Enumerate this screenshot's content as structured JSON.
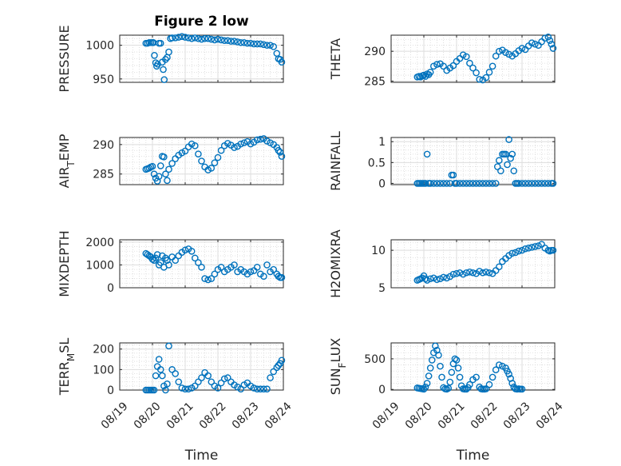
{
  "figure": {
    "marker_color": "#0072bd",
    "x_tick_labels": [
      "08/19",
      "08/20",
      "08/21",
      "08/22",
      "08/23",
      "08/24"
    ],
    "x_label": "Time"
  },
  "chart_data": [
    {
      "type": "scatter",
      "title": "Figure 2 low",
      "ylabel": "PRESSURE",
      "ylabel_main": "PRESSURE",
      "ylabel_sub": "",
      "ylabel_tail": "",
      "yticks": [
        950,
        1000
      ],
      "ylim": [
        945,
        1015
      ],
      "xlim": [
        0,
        5
      ],
      "xlabel": "",
      "x": [
        0.8,
        0.85,
        0.9,
        0.95,
        1.0,
        1.03,
        1.06,
        1.1,
        1.13,
        1.16,
        1.2,
        1.25,
        1.3,
        1.33,
        1.36,
        1.4,
        1.45,
        1.5,
        1.55,
        1.6,
        1.7,
        1.8,
        1.9,
        2.0,
        2.1,
        2.2,
        2.3,
        2.4,
        2.5,
        2.6,
        2.7,
        2.8,
        2.9,
        3.0,
        3.1,
        3.2,
        3.3,
        3.4,
        3.5,
        3.6,
        3.7,
        3.8,
        3.9,
        4.0,
        4.1,
        4.2,
        4.3,
        4.4,
        4.5,
        4.6,
        4.7,
        4.8,
        4.85,
        4.9,
        4.95
      ],
      "y": [
        1003,
        1003,
        1004,
        1004,
        1004,
        1004,
        985,
        974,
        969,
        972,
        1003,
        1003,
        975,
        964,
        949,
        979,
        982,
        990,
        1010,
        1011,
        1011,
        1012,
        1013,
        1012,
        1011,
        1010,
        1011,
        1010,
        1009,
        1010,
        1010,
        1009,
        1008,
        1009,
        1008,
        1007,
        1007,
        1006,
        1006,
        1005,
        1004,
        1004,
        1003,
        1003,
        1002,
        1002,
        1002,
        1001,
        1000,
        1000,
        998,
        988,
        980,
        979,
        975
      ]
    },
    {
      "type": "scatter",
      "title": "",
      "ylabel": "THETA",
      "ylabel_main": "THETA",
      "ylabel_sub": "",
      "ylabel_tail": "",
      "yticks": [
        285,
        290
      ],
      "ylim": [
        284.8,
        292.7
      ],
      "xlim": [
        0,
        5
      ],
      "xlabel": "",
      "x": [
        0.8,
        0.85,
        0.9,
        0.95,
        1.0,
        1.05,
        1.1,
        1.15,
        1.2,
        1.3,
        1.4,
        1.5,
        1.6,
        1.7,
        1.8,
        1.9,
        2.0,
        2.1,
        2.2,
        2.3,
        2.4,
        2.5,
        2.6,
        2.7,
        2.8,
        2.9,
        3.0,
        3.1,
        3.2,
        3.3,
        3.4,
        3.5,
        3.6,
        3.7,
        3.8,
        3.9,
        4.0,
        4.1,
        4.2,
        4.3,
        4.4,
        4.5,
        4.6,
        4.7,
        4.8,
        4.85,
        4.9,
        4.95
      ],
      "y": [
        285.7,
        285.8,
        285.7,
        285.9,
        286.0,
        285.8,
        286.2,
        286.1,
        286.5,
        287.5,
        287.8,
        287.9,
        287.5,
        286.8,
        287.2,
        287.6,
        288.3,
        288.8,
        289.4,
        289.1,
        288.0,
        287.2,
        286.4,
        285.3,
        285.2,
        285.6,
        286.5,
        287.5,
        289.2,
        290.0,
        290.2,
        289.8,
        289.5,
        289.2,
        289.6,
        290.1,
        290.5,
        290.3,
        290.9,
        291.4,
        291.2,
        291.0,
        291.6,
        292.2,
        292.4,
        291.8,
        291.2,
        290.5
      ]
    },
    {
      "type": "scatter",
      "title": "",
      "ylabel": "AIR_TEMP",
      "ylabel_main": "AIR",
      "ylabel_sub": "T",
      "ylabel_tail": "EMP",
      "yticks": [
        285,
        290
      ],
      "ylim": [
        283.2,
        291.2
      ],
      "xlim": [
        0,
        5
      ],
      "xlabel": "",
      "x": [
        0.8,
        0.85,
        0.9,
        0.95,
        1.0,
        1.05,
        1.1,
        1.15,
        1.2,
        1.25,
        1.3,
        1.35,
        1.4,
        1.45,
        1.5,
        1.6,
        1.7,
        1.8,
        1.9,
        2.0,
        2.1,
        2.2,
        2.3,
        2.4,
        2.5,
        2.6,
        2.7,
        2.8,
        2.9,
        3.0,
        3.1,
        3.2,
        3.3,
        3.4,
        3.5,
        3.6,
        3.7,
        3.8,
        3.9,
        4.0,
        4.1,
        4.2,
        4.3,
        4.4,
        4.5,
        4.6,
        4.7,
        4.8,
        4.85,
        4.9,
        4.95
      ],
      "y": [
        285.8,
        285.9,
        286.0,
        286.2,
        286.3,
        285.0,
        284.3,
        283.8,
        284.6,
        286.4,
        288.0,
        287.9,
        285.0,
        283.9,
        285.8,
        286.8,
        287.6,
        288.2,
        288.6,
        288.9,
        289.6,
        290.1,
        289.8,
        288.4,
        287.2,
        286.2,
        285.7,
        286.0,
        286.9,
        287.8,
        289.0,
        289.8,
        290.2,
        289.9,
        289.5,
        289.7,
        290.1,
        290.3,
        290.5,
        290.1,
        290.4,
        290.8,
        290.9,
        291.0,
        290.6,
        290.3,
        290.0,
        289.5,
        289.0,
        288.7,
        288.0
      ]
    },
    {
      "type": "scatter",
      "title": "",
      "ylabel": "RAINFALL",
      "ylabel_main": "RAINFALL",
      "ylabel_sub": "",
      "ylabel_tail": "",
      "yticks": [
        0,
        0.5,
        1
      ],
      "ylim": [
        -0.03,
        1.1
      ],
      "xlim": [
        0,
        5
      ],
      "xlabel": "",
      "x": [
        0.8,
        0.85,
        0.9,
        0.95,
        1.0,
        1.05,
        1.1,
        1.15,
        1.2,
        1.3,
        1.4,
        1.5,
        1.6,
        1.7,
        1.8,
        1.85,
        1.9,
        1.95,
        2.0,
        2.1,
        2.2,
        2.3,
        2.4,
        2.5,
        2.6,
        2.7,
        2.8,
        2.9,
        3.0,
        3.1,
        3.2,
        3.25,
        3.3,
        3.35,
        3.4,
        3.45,
        3.5,
        3.55,
        3.6,
        3.65,
        3.7,
        3.75,
        3.8,
        3.85,
        3.9,
        4.0,
        4.1,
        4.2,
        4.3,
        4.4,
        4.5,
        4.6,
        4.7,
        4.8,
        4.9,
        4.95
      ],
      "y": [
        0,
        0,
        0,
        0,
        0,
        0,
        0.7,
        0,
        0,
        0,
        0,
        0,
        0,
        0,
        0,
        0.2,
        0.2,
        0,
        0,
        0,
        0,
        0,
        0,
        0,
        0,
        0,
        0,
        0,
        0,
        0,
        0,
        0.4,
        0.55,
        0.3,
        0.7,
        0.7,
        0.7,
        0.45,
        1.05,
        0.6,
        0.7,
        0.3,
        0,
        0,
        0,
        0,
        0,
        0,
        0,
        0,
        0,
        0,
        0,
        0,
        0,
        0
      ]
    },
    {
      "type": "scatter",
      "title": "",
      "ylabel": "MIXDEPTH",
      "ylabel_main": "MIXDEPTH",
      "ylabel_sub": "",
      "ylabel_tail": "",
      "yticks": [
        0,
        1000,
        2000
      ],
      "ylim": [
        0,
        2100
      ],
      "xlim": [
        0,
        5
      ],
      "xlabel": "",
      "x": [
        0.8,
        0.85,
        0.9,
        0.95,
        1.0,
        1.05,
        1.1,
        1.15,
        1.2,
        1.25,
        1.3,
        1.35,
        1.4,
        1.45,
        1.5,
        1.6,
        1.7,
        1.8,
        1.9,
        2.0,
        2.1,
        2.2,
        2.3,
        2.4,
        2.5,
        2.6,
        2.7,
        2.8,
        2.9,
        3.0,
        3.1,
        3.2,
        3.3,
        3.4,
        3.5,
        3.6,
        3.7,
        3.8,
        3.9,
        4.0,
        4.1,
        4.2,
        4.3,
        4.4,
        4.5,
        4.6,
        4.7,
        4.8,
        4.85,
        4.9,
        4.95
      ],
      "y": [
        1500,
        1450,
        1400,
        1350,
        1250,
        1200,
        1300,
        1450,
        1000,
        1100,
        1400,
        900,
        1300,
        1200,
        1000,
        1350,
        1200,
        1400,
        1550,
        1650,
        1700,
        1600,
        1300,
        1100,
        900,
        400,
        350,
        400,
        600,
        800,
        900,
        700,
        800,
        900,
        1000,
        700,
        800,
        700,
        600,
        700,
        750,
        900,
        600,
        500,
        1000,
        700,
        800,
        600,
        500,
        450,
        450
      ]
    },
    {
      "type": "scatter",
      "title": "",
      "ylabel": "H2OMIXRA",
      "ylabel_main": "H2OMIXRA",
      "ylabel_sub": "",
      "ylabel_tail": "",
      "yticks": [
        5,
        10
      ],
      "ylim": [
        5,
        11.4
      ],
      "xlim": [
        0,
        5
      ],
      "xlabel": "",
      "x": [
        0.8,
        0.85,
        0.9,
        0.95,
        1.0,
        1.05,
        1.1,
        1.2,
        1.3,
        1.4,
        1.5,
        1.6,
        1.7,
        1.8,
        1.9,
        2.0,
        2.1,
        2.2,
        2.3,
        2.4,
        2.5,
        2.6,
        2.7,
        2.8,
        2.9,
        3.0,
        3.1,
        3.2,
        3.3,
        3.4,
        3.5,
        3.6,
        3.7,
        3.8,
        3.9,
        4.0,
        4.1,
        4.2,
        4.3,
        4.4,
        4.5,
        4.6,
        4.7,
        4.8,
        4.85,
        4.9,
        4.95
      ],
      "y": [
        6.0,
        6.1,
        6.2,
        6.3,
        6.6,
        6.2,
        6.0,
        6.2,
        6.3,
        6.1,
        6.2,
        6.4,
        6.3,
        6.5,
        6.8,
        6.9,
        7.0,
        6.8,
        7.0,
        7.1,
        7.0,
        6.9,
        7.2,
        7.0,
        7.1,
        7.0,
        6.9,
        7.3,
        7.8,
        8.5,
        8.9,
        9.3,
        9.6,
        9.7,
        9.9,
        10.0,
        10.2,
        10.3,
        10.4,
        10.5,
        10.6,
        10.8,
        10.3,
        10.0,
        9.9,
        10.0,
        10.0
      ]
    },
    {
      "type": "scatter",
      "title": "",
      "ylabel": "TERR_MSL",
      "ylabel_main": "TERR",
      "ylabel_sub": "M",
      "ylabel_tail": "SL",
      "yticks": [
        0,
        100,
        200
      ],
      "ylim": [
        0,
        230
      ],
      "xlim": [
        0,
        5
      ],
      "xlabel": "Time",
      "x": [
        0.8,
        0.85,
        0.9,
        0.95,
        1.0,
        1.05,
        1.1,
        1.15,
        1.2,
        1.25,
        1.3,
        1.35,
        1.4,
        1.45,
        1.5,
        1.6,
        1.7,
        1.8,
        1.9,
        2.0,
        2.1,
        2.2,
        2.3,
        2.4,
        2.5,
        2.6,
        2.7,
        2.8,
        2.9,
        3.0,
        3.1,
        3.2,
        3.3,
        3.4,
        3.5,
        3.6,
        3.7,
        3.8,
        3.9,
        4.0,
        4.1,
        4.2,
        4.3,
        4.4,
        4.5,
        4.6,
        4.7,
        4.8,
        4.85,
        4.9,
        4.95
      ],
      "y": [
        0,
        0,
        0,
        0,
        0,
        0,
        70,
        115,
        150,
        100,
        70,
        20,
        0,
        30,
        215,
        100,
        80,
        40,
        10,
        5,
        5,
        10,
        20,
        40,
        60,
        85,
        70,
        40,
        20,
        10,
        35,
        55,
        60,
        40,
        25,
        15,
        5,
        25,
        35,
        20,
        10,
        5,
        5,
        5,
        5,
        60,
        90,
        110,
        120,
        130,
        145
      ]
    },
    {
      "type": "scatter",
      "title": "",
      "ylabel": "SUN_FLUX",
      "ylabel_main": "SUN",
      "ylabel_sub": "F",
      "ylabel_tail": "LUX",
      "yticks": [
        0,
        500
      ],
      "ylim": [
        -10,
        760
      ],
      "xlim": [
        0,
        5
      ],
      "xlabel": "Time",
      "x": [
        0.8,
        0.85,
        0.9,
        0.95,
        1.0,
        1.05,
        1.1,
        1.15,
        1.2,
        1.25,
        1.3,
        1.35,
        1.4,
        1.45,
        1.5,
        1.55,
        1.6,
        1.65,
        1.7,
        1.75,
        1.8,
        1.85,
        1.9,
        1.95,
        2.0,
        2.05,
        2.1,
        2.15,
        2.2,
        2.25,
        2.3,
        2.35,
        2.4,
        2.5,
        2.6,
        2.7,
        2.75,
        2.8,
        2.85,
        2.9,
        3.0,
        3.1,
        3.2,
        3.3,
        3.4,
        3.5,
        3.55,
        3.6,
        3.65,
        3.7,
        3.75,
        3.8,
        3.85,
        3.9,
        3.95,
        4.0
      ],
      "y": [
        25,
        20,
        15,
        10,
        5,
        40,
        100,
        220,
        350,
        480,
        600,
        710,
        640,
        560,
        380,
        200,
        30,
        10,
        5,
        20,
        120,
        280,
        420,
        500,
        480,
        350,
        200,
        60,
        10,
        5,
        5,
        30,
        80,
        160,
        200,
        40,
        10,
        5,
        5,
        10,
        80,
        200,
        320,
        400,
        380,
        350,
        300,
        250,
        180,
        100,
        40,
        10,
        5,
        10,
        5,
        5
      ]
    }
  ]
}
